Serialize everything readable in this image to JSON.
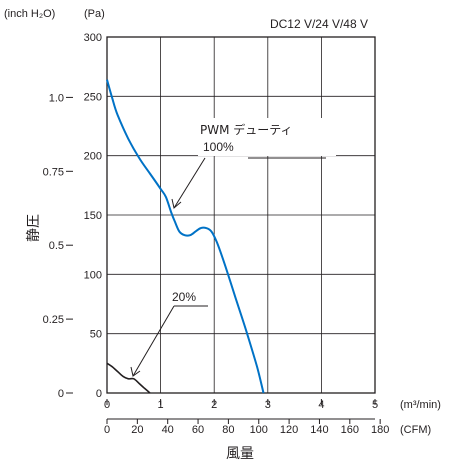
{
  "chart_data": {
    "type": "line",
    "title": "",
    "voltage_label": "DC12 V/24 V/48 V",
    "ylabel": "静圧",
    "xlabel": "風量",
    "y_units": {
      "left": "(inch H₂O)",
      "right": "(Pa)"
    },
    "x_units": {
      "top": "(m³/min)",
      "bottom": "(CFM)"
    },
    "x_m3min": {
      "ticks": [
        "0",
        "1",
        "2",
        "3",
        "4",
        "5"
      ],
      "lim": [
        0,
        5
      ]
    },
    "x_cfm": {
      "ticks": [
        "0",
        "20",
        "40",
        "60",
        "80",
        "100",
        "120",
        "140",
        "160",
        "180"
      ],
      "lim": [
        0,
        176.6
      ]
    },
    "y_pa": {
      "ticks": [
        "0",
        "50",
        "100",
        "150",
        "200",
        "250",
        "300"
      ],
      "lim": [
        0,
        300
      ]
    },
    "y_inch": {
      "ticks": [
        "0",
        "0.25",
        "0.5",
        "0.75",
        "1.0"
      ],
      "values": [
        0,
        0.25,
        0.5,
        0.75,
        1.0
      ]
    },
    "grid": true,
    "annotations": [
      {
        "line1": "PWM デューティ",
        "line2": "100%"
      },
      {
        "line1": "20%"
      }
    ],
    "series": [
      {
        "color": "#0072c6",
        "x": [
          0,
          0.1,
          0.2,
          0.4,
          0.6,
          0.8,
          1.0,
          1.1,
          1.2,
          1.27,
          1.35,
          1.45,
          1.55,
          1.65,
          1.75,
          1.85,
          1.95,
          2.05,
          2.2,
          2.4,
          2.6,
          2.8,
          2.92
        ],
        "y": [
          264,
          248,
          234,
          214,
          198,
          185,
          172,
          165,
          152,
          144,
          136,
          133,
          133,
          136,
          139,
          139,
          136,
          127,
          108,
          80,
          52,
          22,
          0
        ]
      },
      {
        "color": "#231f20",
        "x": [
          0,
          0.1,
          0.2,
          0.3,
          0.4,
          0.5,
          0.6,
          0.7,
          0.8
        ],
        "y": [
          25,
          22,
          18,
          14,
          12,
          12,
          8,
          4,
          0
        ]
      }
    ]
  }
}
